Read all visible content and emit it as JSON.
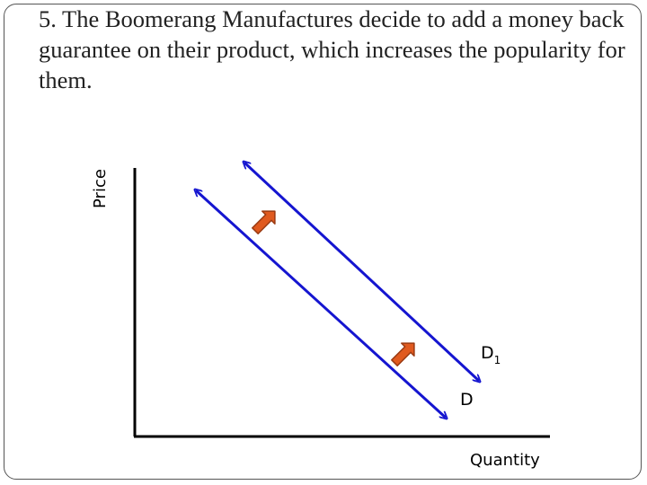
{
  "slide": {
    "title": "5. The Boomerang Manufactures decide to add a money back guarantee on their product, which increases the popularity for them."
  },
  "diagram": {
    "y_axis_label": "Price",
    "x_axis_label": "Quantity",
    "curves": [
      {
        "base": "D",
        "subscript": ""
      },
      {
        "base": "D",
        "subscript": "1"
      }
    ],
    "shift_arrows": 2,
    "shift_direction": "up-right"
  },
  "colors": {
    "curve": "#1515d0",
    "shift_arrow": "#e05a1f",
    "shift_arrow_outline": "#9a3a12",
    "axis": "#000000"
  }
}
